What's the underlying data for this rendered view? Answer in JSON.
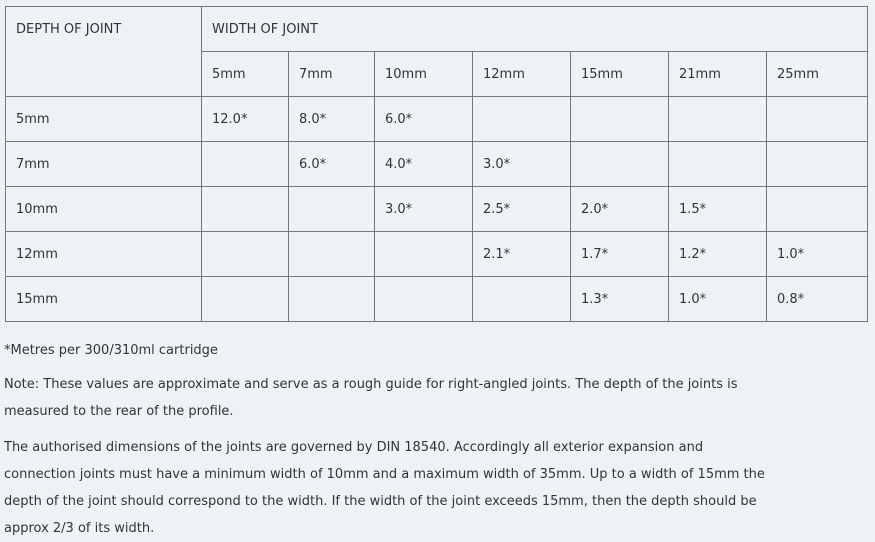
{
  "table": {
    "depth_header": "DEPTH OF JOINT",
    "width_header": "WIDTH OF JOINT",
    "widths": [
      "5mm",
      "7mm",
      "10mm",
      "12mm",
      "15mm",
      "21mm",
      "25mm"
    ],
    "rows": [
      {
        "depth": "5mm",
        "cells": [
          "12.0*",
          "8.0*",
          "6.0*",
          "",
          "",
          "",
          ""
        ]
      },
      {
        "depth": "7mm",
        "cells": [
          "",
          "6.0*",
          "4.0*",
          "3.0*",
          "",
          "",
          ""
        ]
      },
      {
        "depth": "10mm",
        "cells": [
          "",
          "",
          "3.0*",
          "2.5*",
          "2.0*",
          "1.5*",
          ""
        ]
      },
      {
        "depth": "12mm",
        "cells": [
          "",
          "",
          "",
          "2.1*",
          "1.7*",
          "1.2*",
          "1.0*"
        ]
      },
      {
        "depth": "15mm",
        "cells": [
          "",
          "",
          "",
          "",
          "1.3*",
          "1.0*",
          "0.8*"
        ]
      }
    ]
  },
  "footnote": "*Metres per 300/310ml cartridge",
  "note": "Note: These values are approximate and serve as a rough guide for right-angled joints. The depth of the joints is measured to the rear of the profile.",
  "paragraph": "The authorised dimensions of the joints are governed by DIN 18540. Accordingly all exterior expansion and connection joints must have a minimum width of 10mm and a maximum width of 35mm. Up to a width of 15mm the depth of the joint should correspond to the width. If the width of the joint exceeds 15mm, then the depth should be approx 2/3 of its width."
}
